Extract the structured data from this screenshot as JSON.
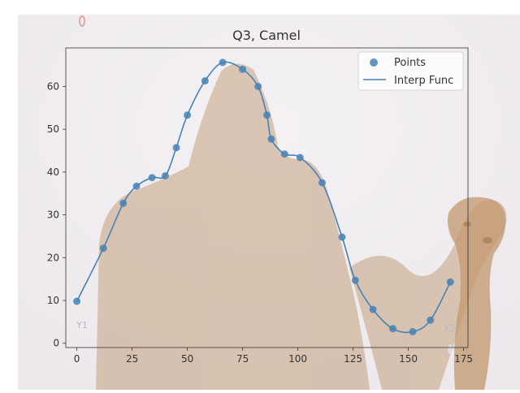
{
  "chart_data": {
    "type": "scatter",
    "title": "Q3, Camel",
    "xlabel": "",
    "ylabel": "",
    "xlim": [
      -5,
      177
    ],
    "ylim": [
      -1,
      69
    ],
    "xticks": [
      0,
      25,
      50,
      75,
      100,
      125,
      150,
      175
    ],
    "yticks": [
      0,
      10,
      20,
      30,
      40,
      50,
      60
    ],
    "grid": false,
    "legend_position": "top-right",
    "background_image": "camel-photo",
    "series": [
      {
        "name": "Points",
        "kind": "scatter",
        "color": "#4682b4",
        "x": [
          0,
          12,
          21,
          27,
          34,
          40,
          45,
          50,
          58,
          66,
          75,
          82,
          86,
          88,
          94,
          101,
          111,
          120,
          126,
          134,
          143,
          152,
          160,
          169
        ],
        "y": [
          9.8,
          22.2,
          32.7,
          36.7,
          38.7,
          39.1,
          45.7,
          53.3,
          61.3,
          65.6,
          64.0,
          60.0,
          53.3,
          47.7,
          44.2,
          43.4,
          37.5,
          24.8,
          14.7,
          7.9,
          3.4,
          2.7,
          5.4,
          14.3
        ]
      },
      {
        "name": "Interp Func",
        "kind": "line",
        "color": "#4682b4"
      }
    ],
    "annotations": [
      "Y1",
      "X2"
    ]
  }
}
